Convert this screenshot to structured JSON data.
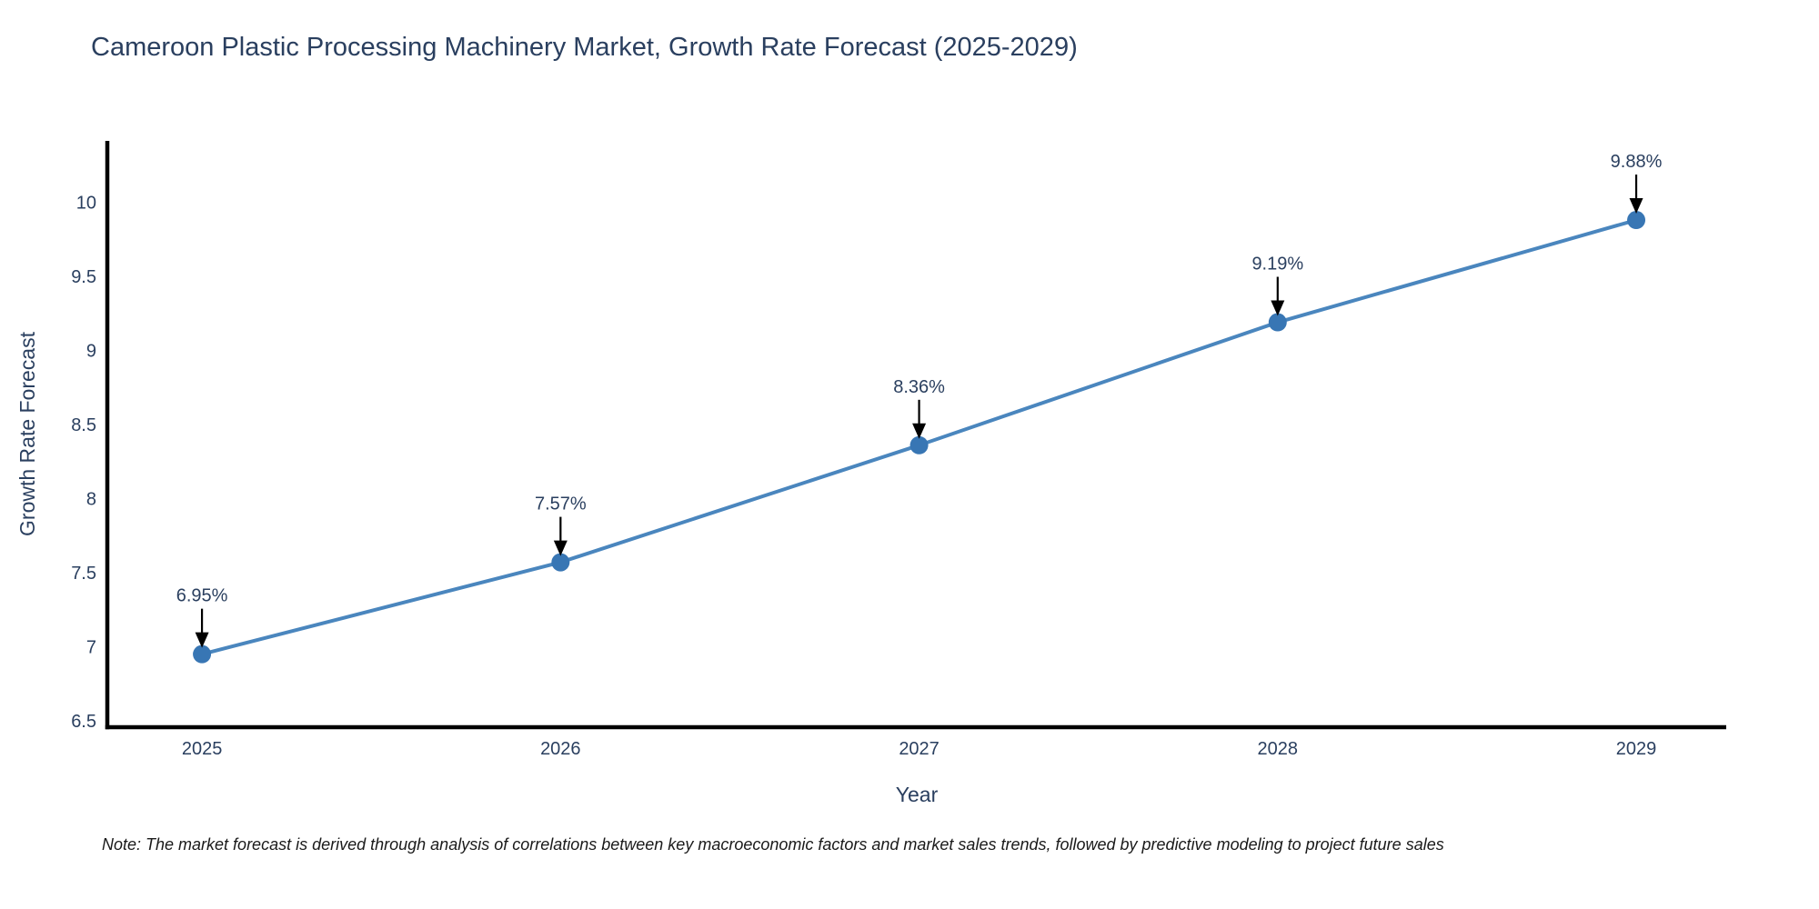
{
  "title": "Cameroon Plastic Processing Machinery Market, Growth Rate Forecast (2025-2029)",
  "footnote": "Note: The market forecast is derived through analysis of correlations between key macroeconomic factors and market sales trends, followed by predictive modeling to project future sales",
  "colors": {
    "background": "#ffffff",
    "title": "#2a3f5f",
    "axis_line": "#000000",
    "tick_label": "#2a3f5f",
    "axis_title": "#2a3f5f",
    "series_line": "#4a86be",
    "marker": "#3876b4",
    "annotation_text": "#2a3f5f",
    "annotation_arrow": "#000000",
    "footnote_text": "#1a1a1a"
  },
  "chart_data": {
    "type": "line",
    "title": "Cameroon Plastic Processing Machinery Market, Growth Rate Forecast (2025-2029)",
    "xlabel": "Year",
    "ylabel": "Growth Rate Forecast",
    "x": [
      2025,
      2026,
      2027,
      2028,
      2029
    ],
    "values": [
      6.95,
      7.57,
      8.36,
      9.19,
      9.88
    ],
    "point_labels": [
      "6.95%",
      "7.57%",
      "8.36%",
      "9.19%",
      "9.88%"
    ],
    "xtick_labels": [
      "2025",
      "2026",
      "2027",
      "2028",
      "2029"
    ],
    "ytick_values": [
      6.5,
      7,
      7.5,
      8,
      8.5,
      9,
      9.5,
      10
    ],
    "ytick_labels": [
      "6.5",
      "7",
      "7.5",
      "8",
      "8.5",
      "9",
      "9.5",
      "10"
    ],
    "xlim": [
      2024.736,
      2029.251
    ],
    "ylim": [
      6.457,
      10.414
    ],
    "grid": false,
    "legend": "none",
    "marker_shape": "circle",
    "annotation_style": "value labels with downward arrows above each point"
  }
}
